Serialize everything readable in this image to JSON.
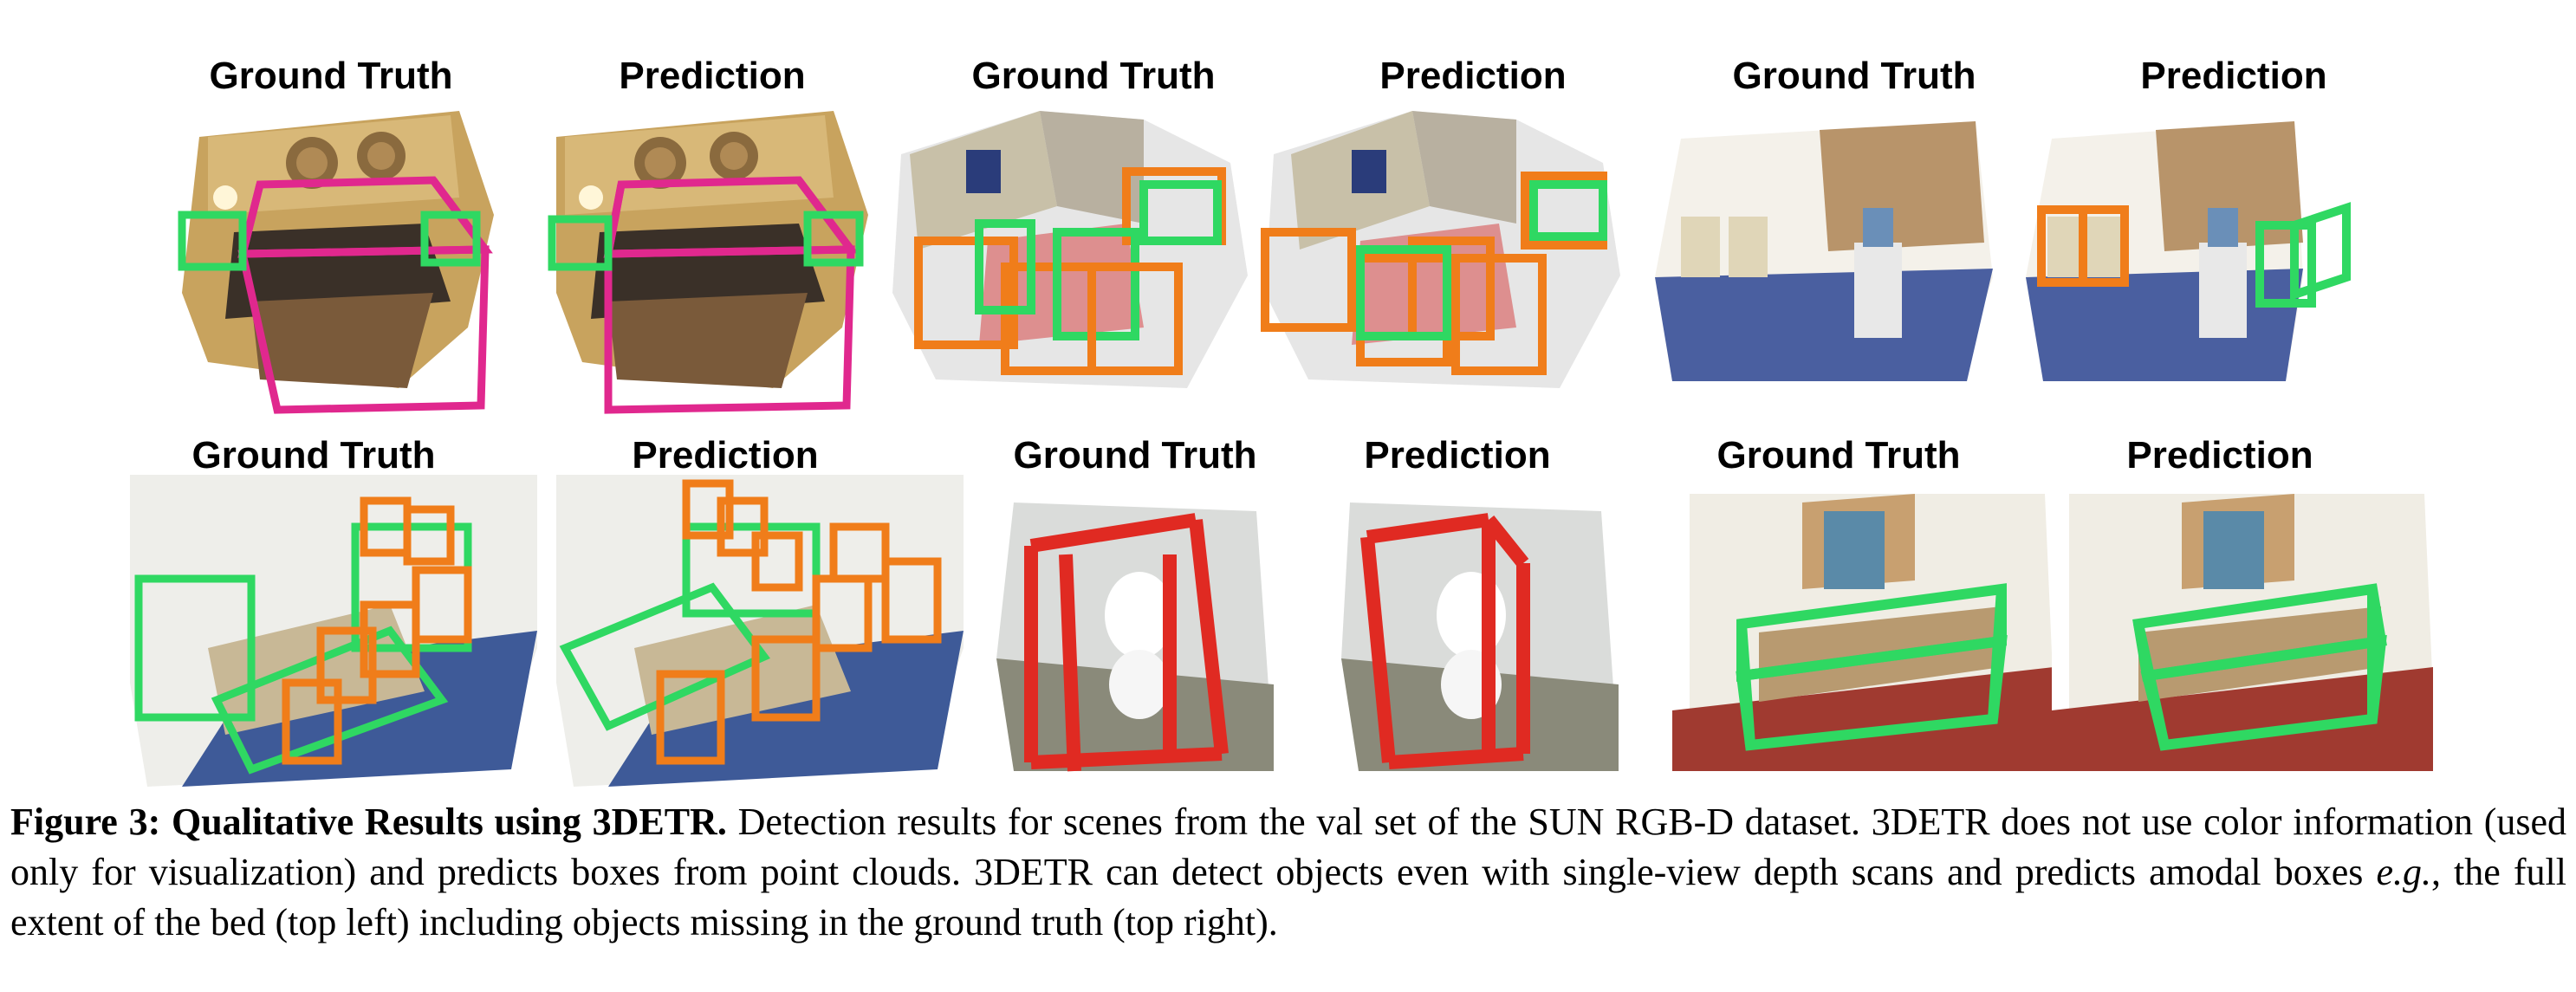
{
  "labels": {
    "ground_truth": "Ground Truth",
    "prediction": "Prediction"
  },
  "scenes": [
    {
      "id": "bedroom",
      "row": "top",
      "gt_box_colors": [
        "#e0288e",
        "#2fd862"
      ],
      "pred_box_colors": [
        "#e0288e",
        "#2fd862"
      ]
    },
    {
      "id": "office-chairs",
      "row": "top",
      "gt_box_colors": [
        "#f07d1a",
        "#2fd862"
      ],
      "pred_box_colors": [
        "#f07d1a",
        "#2fd862"
      ]
    },
    {
      "id": "room-corner",
      "row": "top",
      "gt_box_colors": [],
      "pred_box_colors": [
        "#f07d1a",
        "#2fd862"
      ]
    },
    {
      "id": "office-desks",
      "row": "bottom",
      "gt_box_colors": [
        "#f07d1a",
        "#2fd862"
      ],
      "pred_box_colors": [
        "#f07d1a",
        "#2fd862"
      ]
    },
    {
      "id": "toilet",
      "row": "bottom",
      "gt_box_colors": [
        "#e02a22"
      ],
      "pred_box_colors": [
        "#e02a22"
      ]
    },
    {
      "id": "table-wall",
      "row": "bottom",
      "gt_box_colors": [
        "#2fd862"
      ],
      "pred_box_colors": [
        "#2fd862"
      ]
    }
  ],
  "caption": {
    "figure_label": "Figure 3: Qualitative Results using 3DETR.",
    "text_1": " Detection results for scenes from the val set of the SUN RGB-D dataset. 3DETR does not use color information (used only for visualization) and predicts boxes from point clouds. 3DETR can detect objects even with single-view depth scans and predicts amodal boxes ",
    "eg": "e.g.",
    "text_2": ", the full extent of the bed (top left) including objects missing in the ground truth (top right)."
  }
}
